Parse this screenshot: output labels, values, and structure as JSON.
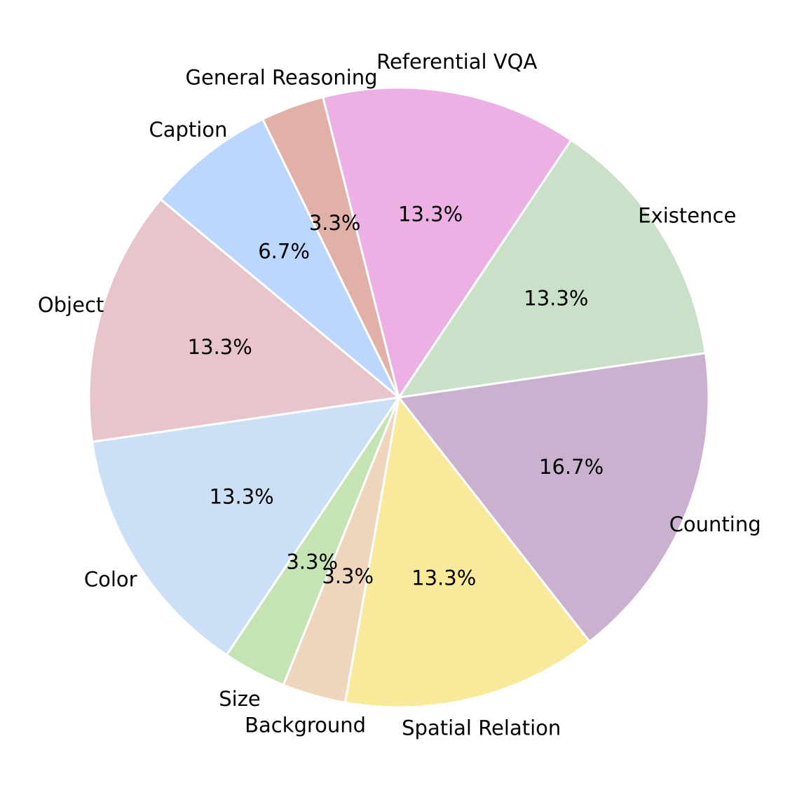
{
  "chart_data": {
    "type": "pie",
    "title": "",
    "direction": "counterclockwise",
    "start_angle_deg": -52,
    "slices": [
      {
        "label": "Counting",
        "value": 16.7,
        "pct_label": "16.7%",
        "color": "#c9b1cf"
      },
      {
        "label": "Existence",
        "value": 13.3,
        "pct_label": "13.3%",
        "color": "#cae0c8"
      },
      {
        "label": "Referential VQA",
        "value": 13.3,
        "pct_label": "13.3%",
        "color": "#ecb0e4"
      },
      {
        "label": "General Reasoning",
        "value": 3.3,
        "pct_label": "3.3%",
        "color": "#e1b1a7"
      },
      {
        "label": "Caption",
        "value": 6.7,
        "pct_label": "6.7%",
        "color": "#bbd7fe"
      },
      {
        "label": "Object",
        "value": 13.3,
        "pct_label": "13.3%",
        "color": "#e8c4cb"
      },
      {
        "label": "Color",
        "value": 13.3,
        "pct_label": "13.3%",
        "color": "#cbdff6"
      },
      {
        "label": "Size",
        "value": 3.3,
        "pct_label": "3.3%",
        "color": "#c5e4b3"
      },
      {
        "label": "Background",
        "value": 3.3,
        "pct_label": "3.3%",
        "color": "#eed5bb"
      },
      {
        "label": "Spatial Relation",
        "value": 13.3,
        "pct_label": "13.3%",
        "color": "#f9e99b"
      }
    ]
  }
}
